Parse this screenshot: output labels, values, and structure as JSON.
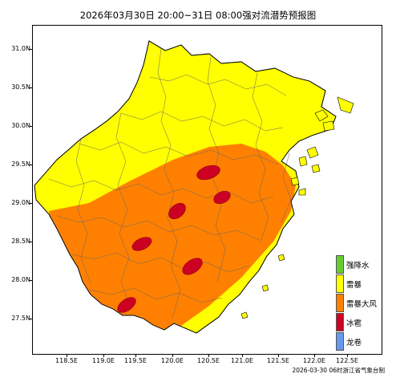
{
  "title": "2026年03月30日 20:00~31日 08:00强对流潜势预报图",
  "credit": "2026-03-30 06时浙江省气象台制",
  "y_ticks": [
    "31.0N",
    "30.5N",
    "30.0N",
    "29.5N",
    "29.0N",
    "28.5N",
    "28.0N",
    "27.5N"
  ],
  "x_ticks": [
    "118.5E",
    "119.0E",
    "119.5E",
    "120.0E",
    "120.5E",
    "121.0E",
    "121.5E",
    "122.0E",
    "122.5E"
  ],
  "legend": [
    {
      "label": "强降水",
      "color": "#66cc33"
    },
    {
      "label": "雷暴",
      "color": "#ffff00"
    },
    {
      "label": "雷暴大风",
      "color": "#ff8000"
    },
    {
      "label": "冰雹",
      "color": "#cc0022"
    },
    {
      "label": "龙卷",
      "color": "#6699ee"
    }
  ],
  "colors": {
    "thunderstorm": "#ffff00",
    "thunderstorm_gale": "#ff8000",
    "hail": "#cc0022",
    "border": "#000000",
    "county_line": "#666666"
  }
}
